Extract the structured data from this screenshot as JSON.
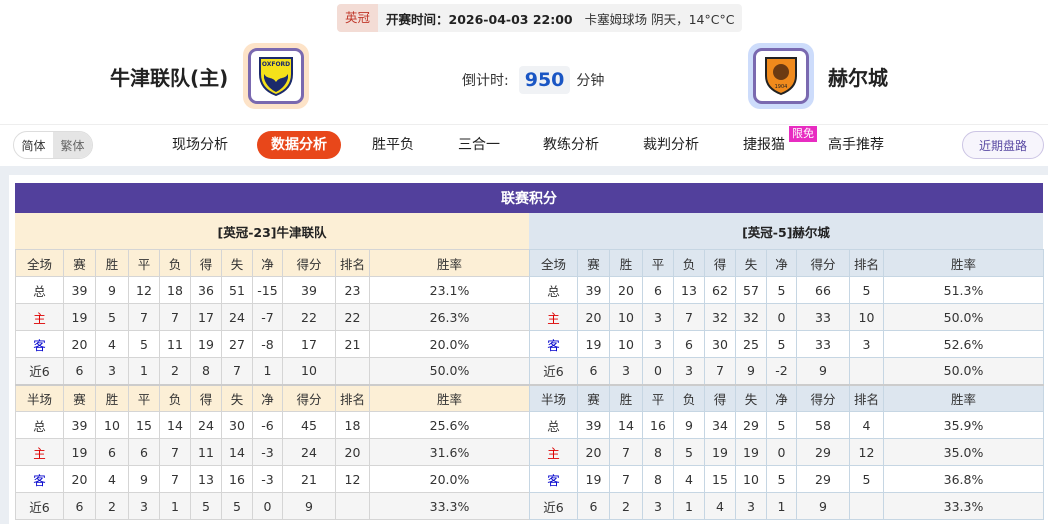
{
  "header": {
    "league": "英冠",
    "kickoff": "开赛时间：2026-04-03 22:00",
    "venue": "卡塞姆球场 阴天，14°C°C"
  },
  "home": {
    "name": "牛津联队(主)",
    "logo_text": "OXFORD"
  },
  "away": {
    "name": "赫尔城",
    "logo_text": "1904"
  },
  "countdown": {
    "label": "倒计时:",
    "value": "950",
    "unit": "分钟"
  },
  "lang": {
    "simplified": "简体",
    "traditional": "繁体"
  },
  "tabs": [
    "现场分析",
    "数据分析",
    "胜平负",
    "三合一",
    "教练分析",
    "裁判分析",
    "捷报猫",
    "高手推荐"
  ],
  "active_tab": "数据分析",
  "badge": "限免",
  "recent_button": "近期盘路",
  "colors": {
    "accent": "#e8471a",
    "title_bar": "#52409c",
    "home_red": "#dd0000",
    "away_blue": "#0000cc"
  },
  "standings": {
    "title": "联赛积分",
    "full_headers": [
      "全场",
      "赛",
      "胜",
      "平",
      "负",
      "得",
      "失",
      "净",
      "得分",
      "排名",
      "胜率"
    ],
    "half_headers": [
      "半场",
      "赛",
      "胜",
      "平",
      "负",
      "得",
      "失",
      "净",
      "得分",
      "排名",
      "胜率"
    ],
    "home": {
      "label": "[英冠-23]牛津联队",
      "full": [
        [
          "总",
          "39",
          "9",
          "12",
          "18",
          "36",
          "51",
          "-15",
          "39",
          "23",
          "23.1%"
        ],
        [
          "主",
          "19",
          "5",
          "7",
          "7",
          "17",
          "24",
          "-7",
          "22",
          "22",
          "26.3%"
        ],
        [
          "客",
          "20",
          "4",
          "5",
          "11",
          "19",
          "27",
          "-8",
          "17",
          "21",
          "20.0%"
        ],
        [
          "近6",
          "6",
          "3",
          "1",
          "2",
          "8",
          "7",
          "1",
          "10",
          "",
          "50.0%"
        ]
      ],
      "half": [
        [
          "总",
          "39",
          "10",
          "15",
          "14",
          "24",
          "30",
          "-6",
          "45",
          "18",
          "25.6%"
        ],
        [
          "主",
          "19",
          "6",
          "6",
          "7",
          "11",
          "14",
          "-3",
          "24",
          "20",
          "31.6%"
        ],
        [
          "客",
          "20",
          "4",
          "9",
          "7",
          "13",
          "16",
          "-3",
          "21",
          "12",
          "20.0%"
        ],
        [
          "近6",
          "6",
          "2",
          "3",
          "1",
          "5",
          "5",
          "0",
          "9",
          "",
          "33.3%"
        ]
      ]
    },
    "away": {
      "label": "[英冠-5]赫尔城",
      "full": [
        [
          "总",
          "39",
          "20",
          "6",
          "13",
          "62",
          "57",
          "5",
          "66",
          "5",
          "51.3%"
        ],
        [
          "主",
          "20",
          "10",
          "3",
          "7",
          "32",
          "32",
          "0",
          "33",
          "10",
          "50.0%"
        ],
        [
          "客",
          "19",
          "10",
          "3",
          "6",
          "30",
          "25",
          "5",
          "33",
          "3",
          "52.6%"
        ],
        [
          "近6",
          "6",
          "3",
          "0",
          "3",
          "7",
          "9",
          "-2",
          "9",
          "",
          "50.0%"
        ]
      ],
      "half": [
        [
          "总",
          "39",
          "14",
          "16",
          "9",
          "34",
          "29",
          "5",
          "58",
          "4",
          "35.9%"
        ],
        [
          "主",
          "20",
          "7",
          "8",
          "5",
          "19",
          "19",
          "0",
          "29",
          "12",
          "35.0%"
        ],
        [
          "客",
          "19",
          "7",
          "8",
          "4",
          "15",
          "10",
          "5",
          "29",
          "5",
          "36.8%"
        ],
        [
          "近6",
          "6",
          "2",
          "3",
          "1",
          "4",
          "3",
          "1",
          "9",
          "",
          "33.3%"
        ]
      ]
    }
  }
}
